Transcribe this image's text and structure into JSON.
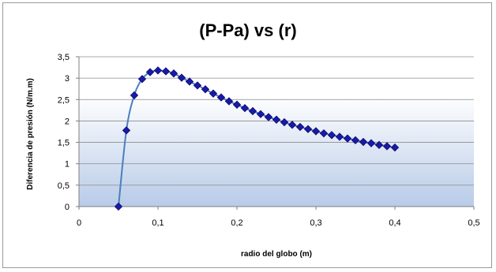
{
  "chart_data": {
    "type": "scatter",
    "title": "(P-Pa) vs (r)",
    "xlabel": "radio del globo (m)",
    "ylabel": "Diferencia de presión (N/m.m)",
    "xlim": [
      0,
      0.5
    ],
    "ylim": [
      0,
      3.5
    ],
    "x_ticks": [
      "0",
      "0,1",
      "0,2",
      "0,3",
      "0,4",
      "0,5"
    ],
    "y_ticks": [
      "0",
      "0,5",
      "1",
      "1,5",
      "2",
      "2,5",
      "3",
      "3,5"
    ],
    "grid": true,
    "legend": "none",
    "colors": {
      "marker": "#1a1aa8",
      "marker_edge": "#0b0b6e",
      "line": "#4a7fc0",
      "band_top": "#ffffff",
      "band_bottom": "#b8cbe8",
      "gridline": "#8c8c8c"
    },
    "series": [
      {
        "x": [
          0.05,
          0.06,
          0.07,
          0.08,
          0.09,
          0.1,
          0.11,
          0.12,
          0.13,
          0.14,
          0.15,
          0.16,
          0.17,
          0.18,
          0.19,
          0.2,
          0.21,
          0.22,
          0.23,
          0.24,
          0.25,
          0.26,
          0.27,
          0.28,
          0.29,
          0.3,
          0.31,
          0.32,
          0.33,
          0.34,
          0.35,
          0.36,
          0.37,
          0.38,
          0.39,
          0.4
        ],
        "y": [
          0,
          1.78,
          2.6,
          2.98,
          3.14,
          3.18,
          3.16,
          3.11,
          3.01,
          2.92,
          2.83,
          2.74,
          2.64,
          2.55,
          2.46,
          2.38,
          2.3,
          2.23,
          2.16,
          2.09,
          2.03,
          1.97,
          1.91,
          1.86,
          1.81,
          1.76,
          1.71,
          1.67,
          1.63,
          1.59,
          1.55,
          1.51,
          1.48,
          1.44,
          1.41,
          1.38
        ]
      }
    ]
  }
}
